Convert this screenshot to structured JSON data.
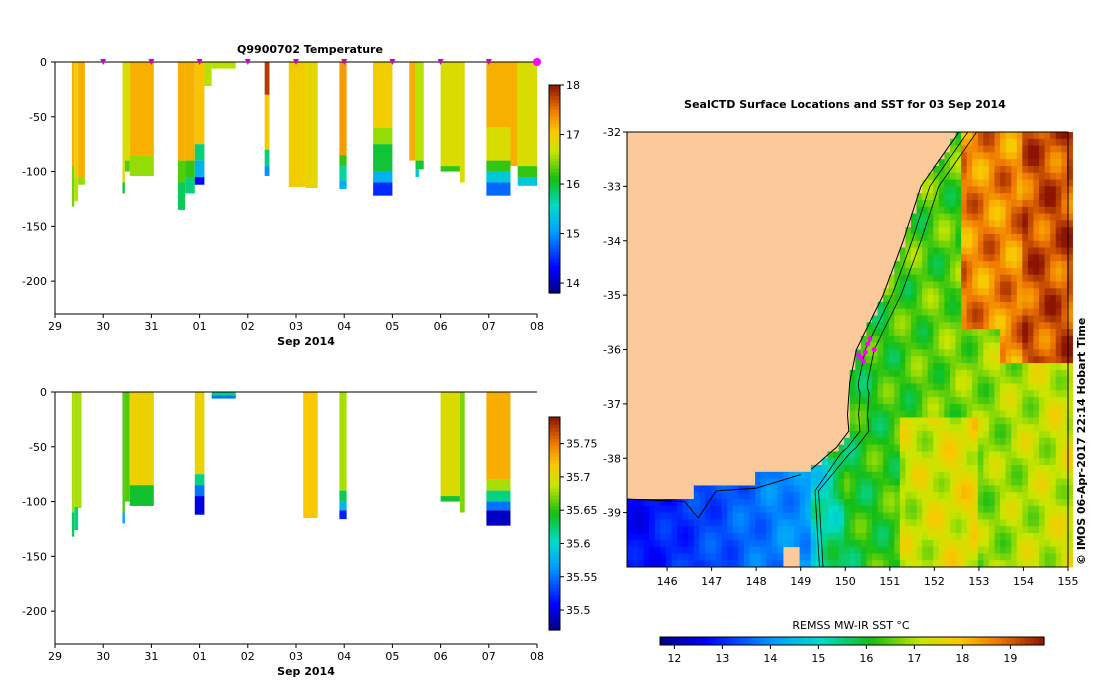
{
  "chart_data": [
    {
      "type": "heatmap",
      "title": "Q9900702  Temperature",
      "xlabel": "Sep 2014",
      "x_ticks": [
        "29",
        "30",
        "31",
        "01",
        "02",
        "03",
        "04",
        "05",
        "06",
        "07",
        "08"
      ],
      "y_ticks": [
        "0",
        "-50",
        "-100",
        "-150",
        "-200"
      ],
      "ylim": [
        -230,
        0
      ],
      "colorbar": {
        "ticks": [
          "14",
          "15",
          "16",
          "17",
          "18"
        ],
        "range": [
          13.8,
          18.0
        ]
      },
      "profile_markers_day": [
        30.0,
        31.0,
        32.0,
        33.0,
        34.0,
        35.0,
        36.0,
        37.0,
        38.0,
        39.0
      ],
      "profiles": [
        {
          "x0": 29.35,
          "x1": 29.4,
          "bottom": -132,
          "segments": [
            [
              0,
              -95,
              17.2
            ],
            [
              -95,
              -132,
              16.4
            ]
          ]
        },
        {
          "x0": 29.4,
          "x1": 29.48,
          "bottom": -127,
          "segments": [
            [
              0,
              -105,
              17.0
            ],
            [
              -105,
              -127,
              16.6
            ]
          ]
        },
        {
          "x0": 29.48,
          "x1": 29.62,
          "bottom": -112,
          "segments": [
            [
              0,
              -105,
              17.2
            ],
            [
              -105,
              -112,
              16.5
            ]
          ]
        },
        {
          "x0": 30.4,
          "x1": 30.45,
          "bottom": -120,
          "segments": [
            [
              0,
              -110,
              16.8
            ],
            [
              -110,
              -120,
              16.0
            ]
          ]
        },
        {
          "x0": 30.45,
          "x1": 30.55,
          "bottom": -100,
          "segments": [
            [
              0,
              -90,
              16.8
            ],
            [
              -90,
              -100,
              16.3
            ]
          ]
        },
        {
          "x0": 30.55,
          "x1": 31.05,
          "bottom": -104,
          "segments": [
            [
              0,
              -85,
              17.2
            ],
            [
              -85,
              -104,
              16.5
            ]
          ]
        },
        {
          "x0": 31.55,
          "x1": 31.7,
          "bottom": -135,
          "segments": [
            [
              0,
              -90,
              17.2
            ],
            [
              -90,
              -110,
              16.3
            ],
            [
              -110,
              -135,
              15.9
            ]
          ]
        },
        {
          "x0": 31.7,
          "x1": 31.9,
          "bottom": -120,
          "segments": [
            [
              0,
              -90,
              17.2
            ],
            [
              -90,
              -105,
              16.2
            ],
            [
              -105,
              -120,
              15.8
            ]
          ]
        },
        {
          "x0": 31.9,
          "x1": 32.1,
          "bottom": -112,
          "segments": [
            [
              0,
              -75,
              17.1
            ],
            [
              -75,
              -90,
              15.8
            ],
            [
              -90,
              -105,
              15.2
            ],
            [
              -105,
              -112,
              14.3
            ]
          ]
        },
        {
          "x0": 32.1,
          "x1": 32.25,
          "bottom": -22,
          "segments": [
            [
              0,
              -22,
              16.6
            ]
          ]
        },
        {
          "x0": 32.25,
          "x1": 32.75,
          "bottom": -6,
          "segments": [
            [
              0,
              -6,
              16.6
            ]
          ]
        },
        {
          "x0": 33.35,
          "x1": 33.45,
          "bottom": -104,
          "segments": [
            [
              0,
              -30,
              17.8
            ],
            [
              -30,
              -80,
              17.0
            ],
            [
              -80,
              -95,
              15.8
            ],
            [
              -95,
              -104,
              15.0
            ]
          ]
        },
        {
          "x0": 33.85,
          "x1": 34.2,
          "bottom": -114,
          "segments": [
            [
              0,
              -114,
              17.0
            ]
          ]
        },
        {
          "x0": 34.2,
          "x1": 34.45,
          "bottom": -115,
          "segments": [
            [
              0,
              -115,
              16.9
            ]
          ]
        },
        {
          "x0": 34.9,
          "x1": 35.05,
          "bottom": -116,
          "segments": [
            [
              0,
              -85,
              17.3
            ],
            [
              -85,
              -95,
              16.2
            ],
            [
              -95,
              -108,
              15.7
            ],
            [
              -108,
              -116,
              15.2
            ]
          ]
        },
        {
          "x0": 35.6,
          "x1": 36.0,
          "bottom": -122,
          "segments": [
            [
              0,
              -60,
              17.0
            ],
            [
              -60,
              -75,
              16.5
            ],
            [
              -75,
              -100,
              16.0
            ],
            [
              -100,
              -110,
              15.2
            ],
            [
              -110,
              -122,
              14.5
            ]
          ]
        },
        {
          "x0": 36.35,
          "x1": 36.48,
          "bottom": -90,
          "segments": [
            [
              0,
              -90,
              17.2
            ]
          ]
        },
        {
          "x0": 36.48,
          "x1": 36.55,
          "bottom": -105,
          "segments": [
            [
              0,
              -90,
              16.6
            ],
            [
              -90,
              -98,
              16.0
            ],
            [
              -98,
              -105,
              15.4
            ]
          ]
        },
        {
          "x0": 36.55,
          "x1": 36.65,
          "bottom": -98,
          "segments": [
            [
              0,
              -90,
              16.6
            ],
            [
              -90,
              -98,
              16.0
            ]
          ]
        },
        {
          "x0": 37.0,
          "x1": 37.4,
          "bottom": -100,
          "segments": [
            [
              0,
              -95,
              16.8
            ],
            [
              -95,
              -100,
              16.2
            ]
          ]
        },
        {
          "x0": 37.4,
          "x1": 37.5,
          "bottom": -110,
          "segments": [
            [
              0,
              -110,
              16.8
            ]
          ]
        },
        {
          "x0": 37.95,
          "x1": 38.45,
          "bottom": -122,
          "segments": [
            [
              0,
              -60,
              17.2
            ],
            [
              -60,
              -90,
              16.8
            ],
            [
              -90,
              -100,
              16.2
            ],
            [
              -100,
              -110,
              15.4
            ],
            [
              -110,
              -122,
              14.8
            ]
          ]
        },
        {
          "x0": 38.45,
          "x1": 38.6,
          "bottom": -95,
          "segments": [
            [
              0,
              -95,
              17.2
            ]
          ]
        },
        {
          "x0": 38.6,
          "x1": 39.0,
          "bottom": -113,
          "segments": [
            [
              0,
              -95,
              16.8
            ],
            [
              -95,
              -105,
              16.2
            ],
            [
              -105,
              -113,
              15.4
            ]
          ]
        }
      ]
    },
    {
      "type": "heatmap",
      "title": "",
      "xlabel": "Sep 2014",
      "x_ticks": [
        "29",
        "30",
        "31",
        "01",
        "02",
        "03",
        "04",
        "05",
        "06",
        "07",
        "08"
      ],
      "y_ticks": [
        "0",
        "-50",
        "-100",
        "-150",
        "-200"
      ],
      "ylim": [
        -230,
        0
      ],
      "colorbar": {
        "ticks": [
          "35.5",
          "35.55",
          "35.6",
          "35.65",
          "35.7",
          "35.75"
        ],
        "range": [
          35.47,
          35.79
        ]
      },
      "profiles": [
        {
          "x0": 29.35,
          "x1": 29.4,
          "bottom": -132,
          "segments": [
            [
              0,
              -110,
              35.68
            ],
            [
              -110,
              -132,
              35.63
            ]
          ]
        },
        {
          "x0": 29.4,
          "x1": 29.48,
          "bottom": -126,
          "segments": [
            [
              0,
              -105,
              35.68
            ],
            [
              -105,
              -126,
              35.62
            ]
          ]
        },
        {
          "x0": 29.48,
          "x1": 29.55,
          "bottom": -106,
          "segments": [
            [
              0,
              -106,
              35.68
            ]
          ]
        },
        {
          "x0": 30.4,
          "x1": 30.45,
          "bottom": -120,
          "segments": [
            [
              0,
              -110,
              35.66
            ],
            [
              -110,
              -120,
              35.57
            ]
          ]
        },
        {
          "x0": 30.45,
          "x1": 30.55,
          "bottom": -100,
          "segments": [
            [
              0,
              -100,
              35.66
            ]
          ]
        },
        {
          "x0": 30.55,
          "x1": 31.05,
          "bottom": -104,
          "segments": [
            [
              0,
              -85,
              35.71
            ],
            [
              -85,
              -104,
              35.64
            ]
          ]
        },
        {
          "x0": 31.9,
          "x1": 32.1,
          "bottom": -112,
          "segments": [
            [
              0,
              -75,
              35.71
            ],
            [
              -75,
              -85,
              35.62
            ],
            [
              -85,
              -95,
              35.55
            ],
            [
              -95,
              -112,
              35.5
            ]
          ]
        },
        {
          "x0": 32.25,
          "x1": 32.75,
          "bottom": -6,
          "segments": [
            [
              0,
              -3,
              35.62
            ],
            [
              -3,
              -6,
              35.55
            ]
          ]
        },
        {
          "x0": 34.15,
          "x1": 34.45,
          "bottom": -115,
          "segments": [
            [
              0,
              -115,
              35.72
            ]
          ]
        },
        {
          "x0": 34.9,
          "x1": 35.05,
          "bottom": -116,
          "segments": [
            [
              0,
              -90,
              35.68
            ],
            [
              -90,
              -100,
              35.63
            ],
            [
              -100,
              -108,
              35.58
            ],
            [
              -108,
              -116,
              35.52
            ]
          ]
        },
        {
          "x0": 37.0,
          "x1": 37.4,
          "bottom": -100,
          "segments": [
            [
              0,
              -95,
              35.7
            ],
            [
              -95,
              -100,
              35.64
            ]
          ]
        },
        {
          "x0": 37.4,
          "x1": 37.5,
          "bottom": -110,
          "segments": [
            [
              0,
              -110,
              35.67
            ]
          ]
        },
        {
          "x0": 37.95,
          "x1": 38.45,
          "bottom": -122,
          "segments": [
            [
              0,
              -80,
              35.73
            ],
            [
              -80,
              -90,
              35.68
            ],
            [
              -90,
              -100,
              35.62
            ],
            [
              -100,
              -108,
              35.55
            ],
            [
              -108,
              -122,
              35.49
            ]
          ]
        }
      ]
    },
    {
      "type": "heatmap",
      "title": "SealCTD Surface Locations and SST for 03 Sep 2014",
      "x_ticks": [
        "146",
        "147",
        "148",
        "149",
        "150",
        "151",
        "152",
        "153",
        "154",
        "155"
      ],
      "y_ticks": [
        "-32",
        "-33",
        "-34",
        "-35",
        "-36",
        "-37",
        "-38",
        "-39"
      ],
      "xlim": [
        145.1,
        155.0
      ],
      "ylim": [
        -40.0,
        -32.0
      ],
      "colorbar": {
        "label": "REMSS MW-IR SST °C",
        "ticks": [
          "12",
          "13",
          "14",
          "15",
          "16",
          "17",
          "18",
          "19"
        ],
        "range": [
          11.7,
          19.7
        ]
      },
      "side_label": "© IMOS 06-Apr-2017 22:14 Hobart Time",
      "seal_locations": [
        [
          150.35,
          -36.15
        ],
        [
          150.45,
          -36.05
        ],
        [
          150.5,
          -35.9
        ],
        [
          150.55,
          -35.8
        ],
        [
          150.4,
          -36.22
        ],
        [
          150.3,
          -36.1
        ],
        [
          150.65,
          -36.0
        ]
      ]
    }
  ]
}
